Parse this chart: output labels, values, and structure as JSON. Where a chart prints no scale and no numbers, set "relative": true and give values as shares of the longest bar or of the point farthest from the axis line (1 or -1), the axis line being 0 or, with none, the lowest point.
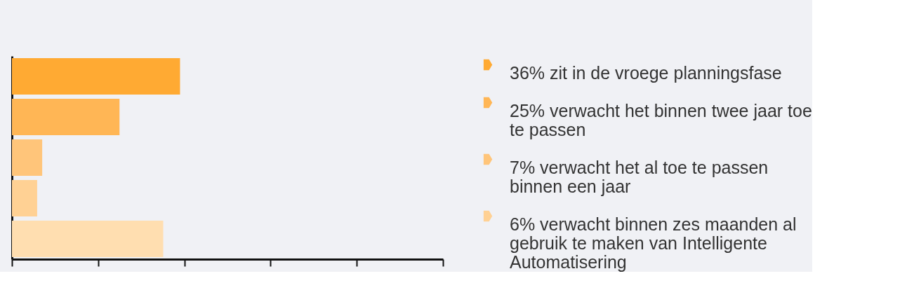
{
  "chart_data": {
    "type": "bar",
    "orientation": "horizontal",
    "relative": true,
    "categories": [
      null,
      null,
      null,
      null,
      null
    ],
    "series": [
      {
        "name": "36% zit in de vroege planningsfase",
        "color": "#ffaa33",
        "values": [
          1,
          null,
          null,
          null,
          null
        ]
      },
      {
        "name": "25% verwacht het binnen twee jaar toe te passen",
        "color": "#ffb655",
        "values": [
          null,
          0.64,
          null,
          null,
          null
        ]
      },
      {
        "name": "7% verwacht het al toe te passen binnen een jaar",
        "color": "#ffc57a",
        "values": [
          null,
          null,
          0.18,
          null,
          null
        ]
      },
      {
        "name": "6% verwacht binnen zes maanden al gebruik te maken van Intelligente Automatisering",
        "color": "#ffd194",
        "values": [
          null,
          null,
          null,
          0.15,
          null
        ]
      },
      {
        "color": "#ffdeb0",
        "values": [
          null,
          null,
          null,
          null,
          0.9
        ]
      }
    ],
    "stacked": true,
    "legend": "right",
    "grid": false
  }
}
